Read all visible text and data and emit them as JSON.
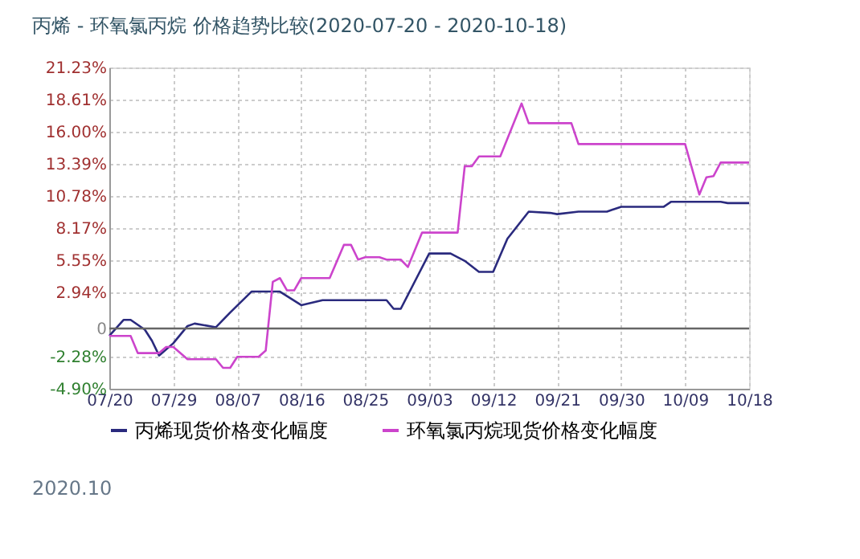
{
  "chart_data": {
    "type": "line",
    "title": "丙烯 - 环氧氯丙烷 价格趋势比较(2020-07-20 - 2020-10-18)",
    "series": [
      {
        "name": "丙烯现货价格变化幅度",
        "color": "#2a2a7e",
        "x": [
          "2020-07-20",
          "2020-07-22",
          "2020-07-23",
          "2020-07-25",
          "2020-07-26",
          "2020-07-27",
          "2020-07-29",
          "2020-07-31",
          "2020-08-01",
          "2020-08-04",
          "2020-08-06",
          "2020-08-09",
          "2020-08-13",
          "2020-08-16",
          "2020-08-19",
          "2020-08-28",
          "2020-08-29",
          "2020-08-30",
          "2020-09-03",
          "2020-09-06",
          "2020-09-08",
          "2020-09-10",
          "2020-09-12",
          "2020-09-14",
          "2020-09-17",
          "2020-09-20",
          "2020-09-21",
          "2020-09-24",
          "2020-09-28",
          "2020-09-30",
          "2020-10-06",
          "2020-10-07",
          "2020-10-14",
          "2020-10-15",
          "2020-10-18"
        ],
        "values": [
          -0.6,
          0.7,
          0.7,
          -0.1,
          -1.0,
          -2.2,
          -1.2,
          0.2,
          0.4,
          0.1,
          1.3,
          3.0,
          3.0,
          1.9,
          2.3,
          2.3,
          1.6,
          1.6,
          6.1,
          6.1,
          5.5,
          4.6,
          4.6,
          7.3,
          9.5,
          9.4,
          9.3,
          9.5,
          9.5,
          9.9,
          9.9,
          10.3,
          10.3,
          10.2,
          10.2
        ]
      },
      {
        "name": "环氧氯丙烷现货价格变化幅度",
        "color": "#cc44cc",
        "x": [
          "2020-07-20",
          "2020-07-23",
          "2020-07-24",
          "2020-07-27",
          "2020-07-28",
          "2020-07-29",
          "2020-07-31",
          "2020-08-04",
          "2020-08-05",
          "2020-08-06",
          "2020-08-07",
          "2020-08-10",
          "2020-08-11",
          "2020-08-12",
          "2020-08-13",
          "2020-08-14",
          "2020-08-15",
          "2020-08-16",
          "2020-08-20",
          "2020-08-22",
          "2020-08-23",
          "2020-08-24",
          "2020-08-25",
          "2020-08-27",
          "2020-08-28",
          "2020-08-30",
          "2020-08-31",
          "2020-09-02",
          "2020-09-07",
          "2020-09-08",
          "2020-09-09",
          "2020-09-10",
          "2020-09-13",
          "2020-09-16",
          "2020-09-17",
          "2020-09-23",
          "2020-09-24",
          "2020-10-09",
          "2020-10-11",
          "2020-10-12",
          "2020-10-13",
          "2020-10-14",
          "2020-10-18"
        ],
        "values": [
          -0.6,
          -0.6,
          -2.0,
          -2.0,
          -1.5,
          -1.5,
          -2.5,
          -2.5,
          -3.2,
          -3.2,
          -2.3,
          -2.3,
          -1.8,
          3.8,
          4.1,
          3.1,
          3.1,
          4.1,
          4.1,
          6.8,
          6.8,
          5.6,
          5.8,
          5.8,
          5.6,
          5.6,
          5.0,
          7.8,
          7.8,
          13.2,
          13.2,
          14.0,
          14.0,
          18.3,
          16.7,
          16.7,
          15.0,
          15.0,
          10.9,
          12.3,
          12.4,
          13.5,
          13.5
        ]
      }
    ],
    "xlim": [
      "2020-07-20",
      "2020-10-18"
    ],
    "xticks": [
      {
        "value": "2020-07-20",
        "label": "07/20"
      },
      {
        "value": "2020-07-29",
        "label": "07/29"
      },
      {
        "value": "2020-08-07",
        "label": "08/07"
      },
      {
        "value": "2020-08-16",
        "label": "08/16"
      },
      {
        "value": "2020-08-25",
        "label": "08/25"
      },
      {
        "value": "2020-09-03",
        "label": "09/03"
      },
      {
        "value": "2020-09-12",
        "label": "09/12"
      },
      {
        "value": "2020-09-21",
        "label": "09/21"
      },
      {
        "value": "2020-09-30",
        "label": "09/30"
      },
      {
        "value": "2020-10-09",
        "label": "10/09"
      },
      {
        "value": "2020-10-18",
        "label": "10/18"
      }
    ],
    "ylim": [
      -4.9,
      21.23
    ],
    "yticks": [
      {
        "value": -4.9,
        "label": "-4.90%"
      },
      {
        "value": -2.28,
        "label": "-2.28%"
      },
      0,
      {
        "value": 2.94,
        "label": "2.94%"
      },
      {
        "value": 5.55,
        "label": "5.55%"
      },
      {
        "value": 8.17,
        "label": "8.17%"
      },
      {
        "value": 10.78,
        "label": "10.78%"
      },
      {
        "value": 13.39,
        "label": "13.39%"
      },
      {
        "value": 16.0,
        "label": "16.00%"
      },
      {
        "value": 18.61,
        "label": "18.61%"
      },
      {
        "value": 21.23,
        "label": "21.23%"
      }
    ],
    "ref_lines": [
      {
        "axis": "y",
        "value": 0,
        "color": "#666666"
      }
    ],
    "grid": true,
    "legend": "bottom",
    "marker": "none",
    "line_style": "solid",
    "annotations": [
      "2020.10"
    ]
  }
}
